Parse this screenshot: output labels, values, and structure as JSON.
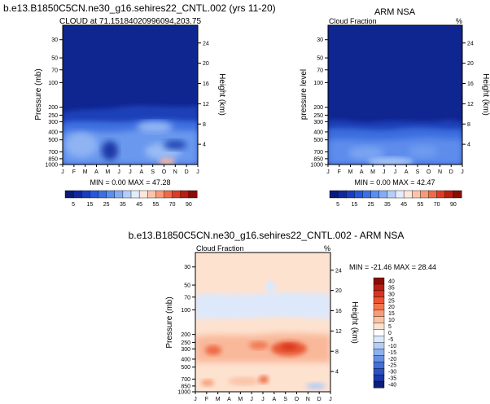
{
  "figure": {
    "title_top": "b.e13.B1850C5CN.ne30_g16.sehires22_CNTL.002 (yrs 11-20)",
    "title_bottom": "b.e13.B1850C5CN.ne30_g16.sehires22_CNTL.002 - ARM NSA"
  },
  "chart_data": [
    {
      "type": "heatmap",
      "title": "CLOUD at 71.15184020996094,203.75",
      "ylabel": "Pressure (mb)",
      "y2label": "Height (km)",
      "x": [
        "J",
        "F",
        "M",
        "A",
        "M",
        "J",
        "J",
        "A",
        "S",
        "O",
        "N",
        "D",
        "J"
      ],
      "y_ticks": [
        30,
        50,
        70,
        100,
        200,
        250,
        300,
        400,
        500,
        700,
        850,
        1000
      ],
      "y2_ticks": [
        24,
        20,
        16,
        12,
        8,
        4
      ],
      "stats": "MIN =  0.00 MAX = 47.28",
      "colorbar": {
        "labels": [
          "5",
          "15",
          "25",
          "35",
          "45",
          "55",
          "70",
          "90"
        ],
        "colors": [
          "#0a1a7a",
          "#10289a",
          "#1a3cc0",
          "#2756d8",
          "#3a70e6",
          "#5a8ef0",
          "#84acf4",
          "#b4cef8",
          "#e2ecfc",
          "#fde6dc",
          "#fbc4aa",
          "#f79a78",
          "#ef6a4a",
          "#dc3c24",
          "#b81e12",
          "#8a0c06"
        ]
      }
    },
    {
      "type": "heatmap",
      "title": "ARM NSA",
      "left_label": "Cloud Fraction",
      "right_label": "%",
      "ylabel": "pressure level",
      "y2label": "Height (km)",
      "x": [
        "J",
        "F",
        "M",
        "A",
        "M",
        "J",
        "J",
        "A",
        "S",
        "O",
        "N",
        "D",
        "J"
      ],
      "y_ticks": [
        30,
        50,
        70,
        100,
        200,
        250,
        300,
        400,
        500,
        700,
        850,
        1000
      ],
      "y2_ticks": [
        24,
        20,
        16,
        12,
        8,
        4
      ],
      "stats": "MIN =  0.00 MAX = 42.47",
      "colorbar": {
        "labels": [
          "5",
          "15",
          "25",
          "35",
          "45",
          "55",
          "70",
          "90"
        ]
      }
    },
    {
      "type": "heatmap",
      "title": "Cloud Fraction",
      "right_label": "%",
      "ylabel": "Pressure (mb)",
      "y2label": "Height (km)",
      "x": [
        "J",
        "F",
        "M",
        "A",
        "M",
        "J",
        "J",
        "A",
        "S",
        "O",
        "N",
        "D",
        "J"
      ],
      "y_ticks": [
        30,
        50,
        70,
        100,
        200,
        250,
        300,
        400,
        500,
        700,
        850,
        1000
      ],
      "y2_ticks": [
        24,
        20,
        16,
        12,
        8,
        4
      ],
      "stats": "MIN = -21.46 MAX =  28.44",
      "colorbar": {
        "labels": [
          "40",
          "35",
          "30",
          "25",
          "20",
          "15",
          "10",
          "5",
          "0",
          "-5",
          "-10",
          "-15",
          "-20",
          "-25",
          "-30",
          "-35",
          "-40"
        ],
        "colors": [
          "#8a0c06",
          "#b81e12",
          "#d83420",
          "#ec5434",
          "#f4764e",
          "#f89c78",
          "#fbc2a6",
          "#fde2d0",
          "#ffffff",
          "#dde8fa",
          "#b6cdf4",
          "#8eb0ee",
          "#6690e4",
          "#4470d6",
          "#2a52c2",
          "#1a38a6",
          "#0c1e78"
        ]
      }
    }
  ]
}
